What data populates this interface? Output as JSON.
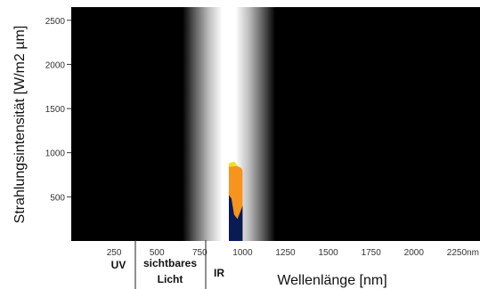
{
  "chart_data": {
    "type": "area",
    "xlabel": "Wellenlänge [nm]",
    "ylabel": "Strahlungsintensität [W/m2 µm]",
    "xlim": [
      0,
      2500
    ],
    "ylim": [
      0,
      2650
    ],
    "x_ticks": [
      "250",
      "500",
      "750",
      "1000",
      "1250",
      "1500",
      "1750",
      "2000",
      "2250",
      "nm"
    ],
    "y_ticks": [
      "500",
      "1000",
      "1500",
      "2000",
      "2500"
    ],
    "regions": [
      {
        "label": "UV"
      },
      {
        "label_line1": "sichtbares",
        "label_line2": "Licht"
      },
      {
        "label": "IR"
      }
    ],
    "background_color": "#000000",
    "series": [
      {
        "color": "#f7941d",
        "x": [
          920,
          935,
          950,
          965,
          980,
          995,
          1000,
          1000,
          920
        ],
        "y": [
          880,
          870,
          860,
          850,
          840,
          820,
          790,
          0,
          0
        ]
      },
      {
        "color": "#0a1a55",
        "x": [
          920,
          935,
          950,
          970,
          985,
          1000,
          1000,
          920
        ],
        "y": [
          520,
          480,
          300,
          250,
          320,
          400,
          0,
          0
        ]
      }
    ]
  },
  "colors": {
    "visible_band": "#ffffff",
    "spectrum_yellow": "#f0e020",
    "spectrum_green": "#80c040"
  }
}
